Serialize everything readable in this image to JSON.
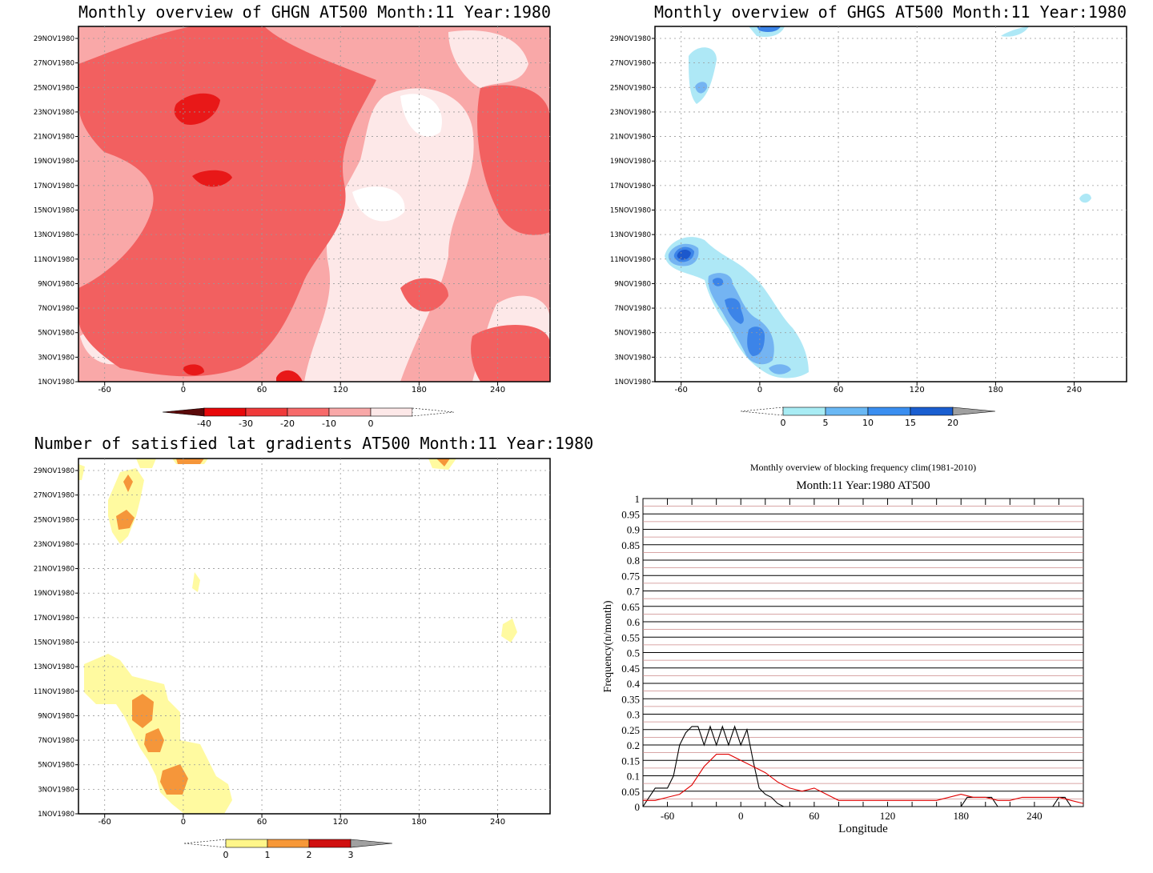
{
  "chart_data": [
    {
      "type": "heatmap",
      "title": "Monthly overview of GHGN AT500 Month:11 Year:1980",
      "y_ticks": [
        "1NOV1980",
        "3NOV1980",
        "5NOV1980",
        "7NOV1980",
        "9NOV1980",
        "11NOV1980",
        "13NOV1980",
        "15NOV1980",
        "17NOV1980",
        "19NOV1980",
        "21NOV1980",
        "23NOV1980",
        "25NOV1980",
        "27NOV1980",
        "29NOV1980"
      ],
      "x_ticks": [
        "-60",
        "0",
        "60",
        "120",
        "180",
        "240"
      ],
      "xlim": [
        -80,
        280
      ],
      "colorbar": {
        "labels": [
          "-40",
          "-30",
          "-20",
          "-10",
          "0"
        ],
        "colors": [
          "#5a0a0a",
          "#e8080a",
          "#f03a3a",
          "#f76a6a",
          "#f9a8a8",
          "#fde8e8",
          "#ffffff"
        ]
      },
      "fill_levels": [
        "#fde8e8",
        "#f9a8a8",
        "#f26060",
        "#e81818"
      ]
    },
    {
      "type": "heatmap",
      "title": "Monthly overview of GHGS AT500 Month:11 Year:1980",
      "y_ticks": [
        "1NOV1980",
        "3NOV1980",
        "5NOV1980",
        "7NOV1980",
        "9NOV1980",
        "11NOV1980",
        "13NOV1980",
        "15NOV1980",
        "17NOV1980",
        "19NOV1980",
        "21NOV1980",
        "23NOV1980",
        "25NOV1980",
        "27NOV1980",
        "29NOV1980"
      ],
      "x_ticks": [
        "-60",
        "0",
        "60",
        "120",
        "180",
        "240"
      ],
      "xlim": [
        -80,
        280
      ],
      "colorbar": {
        "labels": [
          "0",
          "5",
          "10",
          "15",
          "20"
        ],
        "colors": [
          "#ffffff",
          "#a8ecf4",
          "#6ab8f4",
          "#3a8ef0",
          "#1a5ed0",
          "#a0a0a0"
        ]
      },
      "fill_levels": [
        "#aee8f6",
        "#74b4f2",
        "#3c84e8",
        "#1c58cc"
      ]
    },
    {
      "type": "heatmap",
      "title": "Number of satisfied lat gradients AT500 Month:11 Year:1980",
      "y_ticks": [
        "1NOV1980",
        "3NOV1980",
        "5NOV1980",
        "7NOV1980",
        "9NOV1980",
        "11NOV1980",
        "13NOV1980",
        "15NOV1980",
        "17NOV1980",
        "19NOV1980",
        "21NOV1980",
        "23NOV1980",
        "25NOV1980",
        "27NOV1980",
        "29NOV1980"
      ],
      "x_ticks": [
        "-60",
        "0",
        "60",
        "120",
        "180",
        "240"
      ],
      "xlim": [
        -80,
        280
      ],
      "colorbar": {
        "labels": [
          "0",
          "1",
          "2",
          "3"
        ],
        "colors": [
          "#ffffff",
          "#fff68a",
          "#f79838",
          "#d01010",
          "#a0a0a0"
        ]
      },
      "fill_levels": [
        "#fffaa0",
        "#f5963a"
      ]
    },
    {
      "type": "line",
      "title": "Monthly overview of blocking frequency clim(1981-2010)",
      "subtitle": "Month:11 Year:1980  AT500",
      "xlabel": "Longitude",
      "ylabel": "Frequency(n/month)",
      "xlim": [
        -80,
        280
      ],
      "ylim": [
        0,
        1
      ],
      "x_ticks": [
        "-60",
        "0",
        "60",
        "120",
        "180",
        "240"
      ],
      "y_ticks": [
        "0",
        "0.05",
        "0.1",
        "0.15",
        "0.2",
        "0.25",
        "0.3",
        "0.35",
        "0.4",
        "0.45",
        "0.5",
        "0.55",
        "0.6",
        "0.65",
        "0.7",
        "0.75",
        "0.8",
        "0.85",
        "0.9",
        "0.95",
        "1"
      ],
      "series": [
        {
          "color": "#000000",
          "x": [
            -80,
            -75,
            -70,
            -65,
            -60,
            -55,
            -50,
            -45,
            -40,
            -35,
            -30,
            -25,
            -20,
            -15,
            -10,
            -5,
            0,
            5,
            10,
            15,
            20,
            25,
            30,
            35,
            40,
            180,
            185,
            190,
            195,
            200,
            205,
            210,
            215,
            220,
            255,
            260,
            265,
            270
          ],
          "y": [
            0,
            0.03,
            0.06,
            0.06,
            0.06,
            0.1,
            0.2,
            0.24,
            0.26,
            0.26,
            0.2,
            0.26,
            0.2,
            0.26,
            0.2,
            0.26,
            0.2,
            0.25,
            0.15,
            0.06,
            0.04,
            0.03,
            0.01,
            0,
            0,
            0,
            0.03,
            0.03,
            0.03,
            0.03,
            0.03,
            0,
            0,
            0,
            0,
            0.03,
            0.03,
            0
          ]
        },
        {
          "color": "#e00000",
          "x": [
            -80,
            -70,
            -60,
            -50,
            -40,
            -30,
            -20,
            -10,
            0,
            10,
            20,
            30,
            40,
            50,
            60,
            70,
            80,
            100,
            120,
            140,
            160,
            180,
            190,
            200,
            210,
            220,
            230,
            240,
            250,
            260,
            270,
            280
          ],
          "y": [
            0.02,
            0.02,
            0.03,
            0.04,
            0.07,
            0.13,
            0.17,
            0.17,
            0.15,
            0.13,
            0.11,
            0.08,
            0.06,
            0.05,
            0.06,
            0.04,
            0.02,
            0.02,
            0.02,
            0.02,
            0.02,
            0.04,
            0.03,
            0.03,
            0.02,
            0.02,
            0.03,
            0.03,
            0.03,
            0.03,
            0.02,
            0.01
          ]
        }
      ]
    }
  ]
}
